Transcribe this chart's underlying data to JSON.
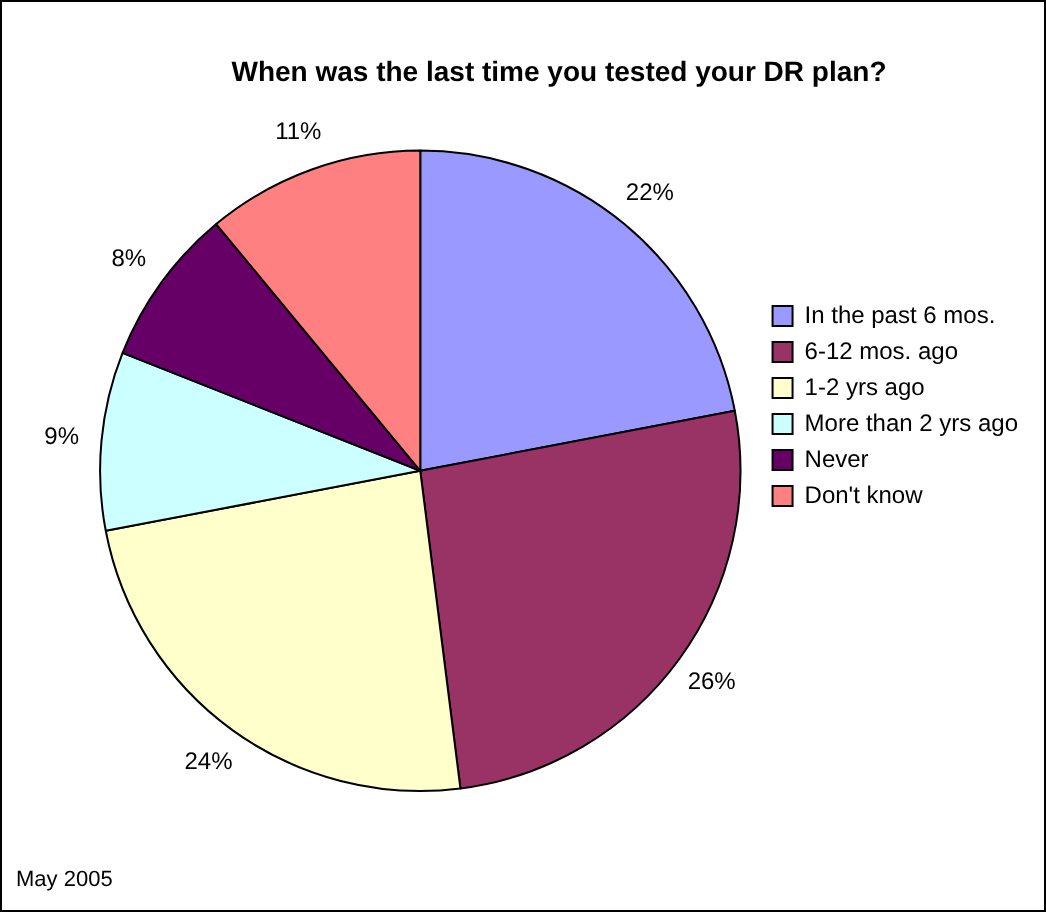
{
  "chart_data": {
    "type": "pie",
    "title": "When was the last time you tested your DR plan?",
    "categories": [
      "In the past 6 mos.",
      "6-12 mos. ago",
      "1-2 yrs ago",
      "More than 2 yrs ago",
      "Never",
      "Don't know"
    ],
    "values": [
      22,
      26,
      24,
      9,
      8,
      11
    ],
    "colors": [
      "#9999ff",
      "#993366",
      "#ffffcc",
      "#ccffff",
      "#660066",
      "#ff8080"
    ],
    "value_labels": [
      "22%",
      "26%",
      "24%",
      "9%",
      "8%",
      "11%"
    ],
    "legend": "right",
    "annotations": [
      "May 2005"
    ]
  }
}
